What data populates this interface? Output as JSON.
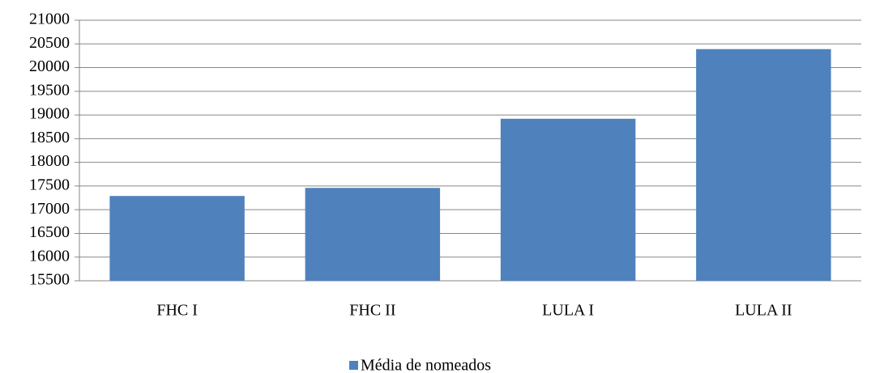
{
  "chart_data": {
    "type": "bar",
    "categories": [
      "FHC I",
      "FHC II",
      "LULA I",
      "LULA II"
    ],
    "series": [
      {
        "name": "Média de nomeados",
        "color": "#4f81bd",
        "values": [
          17290,
          17460,
          18920,
          20390
        ]
      }
    ],
    "ylim": [
      15500,
      21000
    ],
    "yticks": [
      15500,
      16000,
      16500,
      17000,
      17500,
      18000,
      18500,
      19000,
      19500,
      20000,
      20500,
      21000
    ],
    "grid": true,
    "legend": "bottom"
  }
}
